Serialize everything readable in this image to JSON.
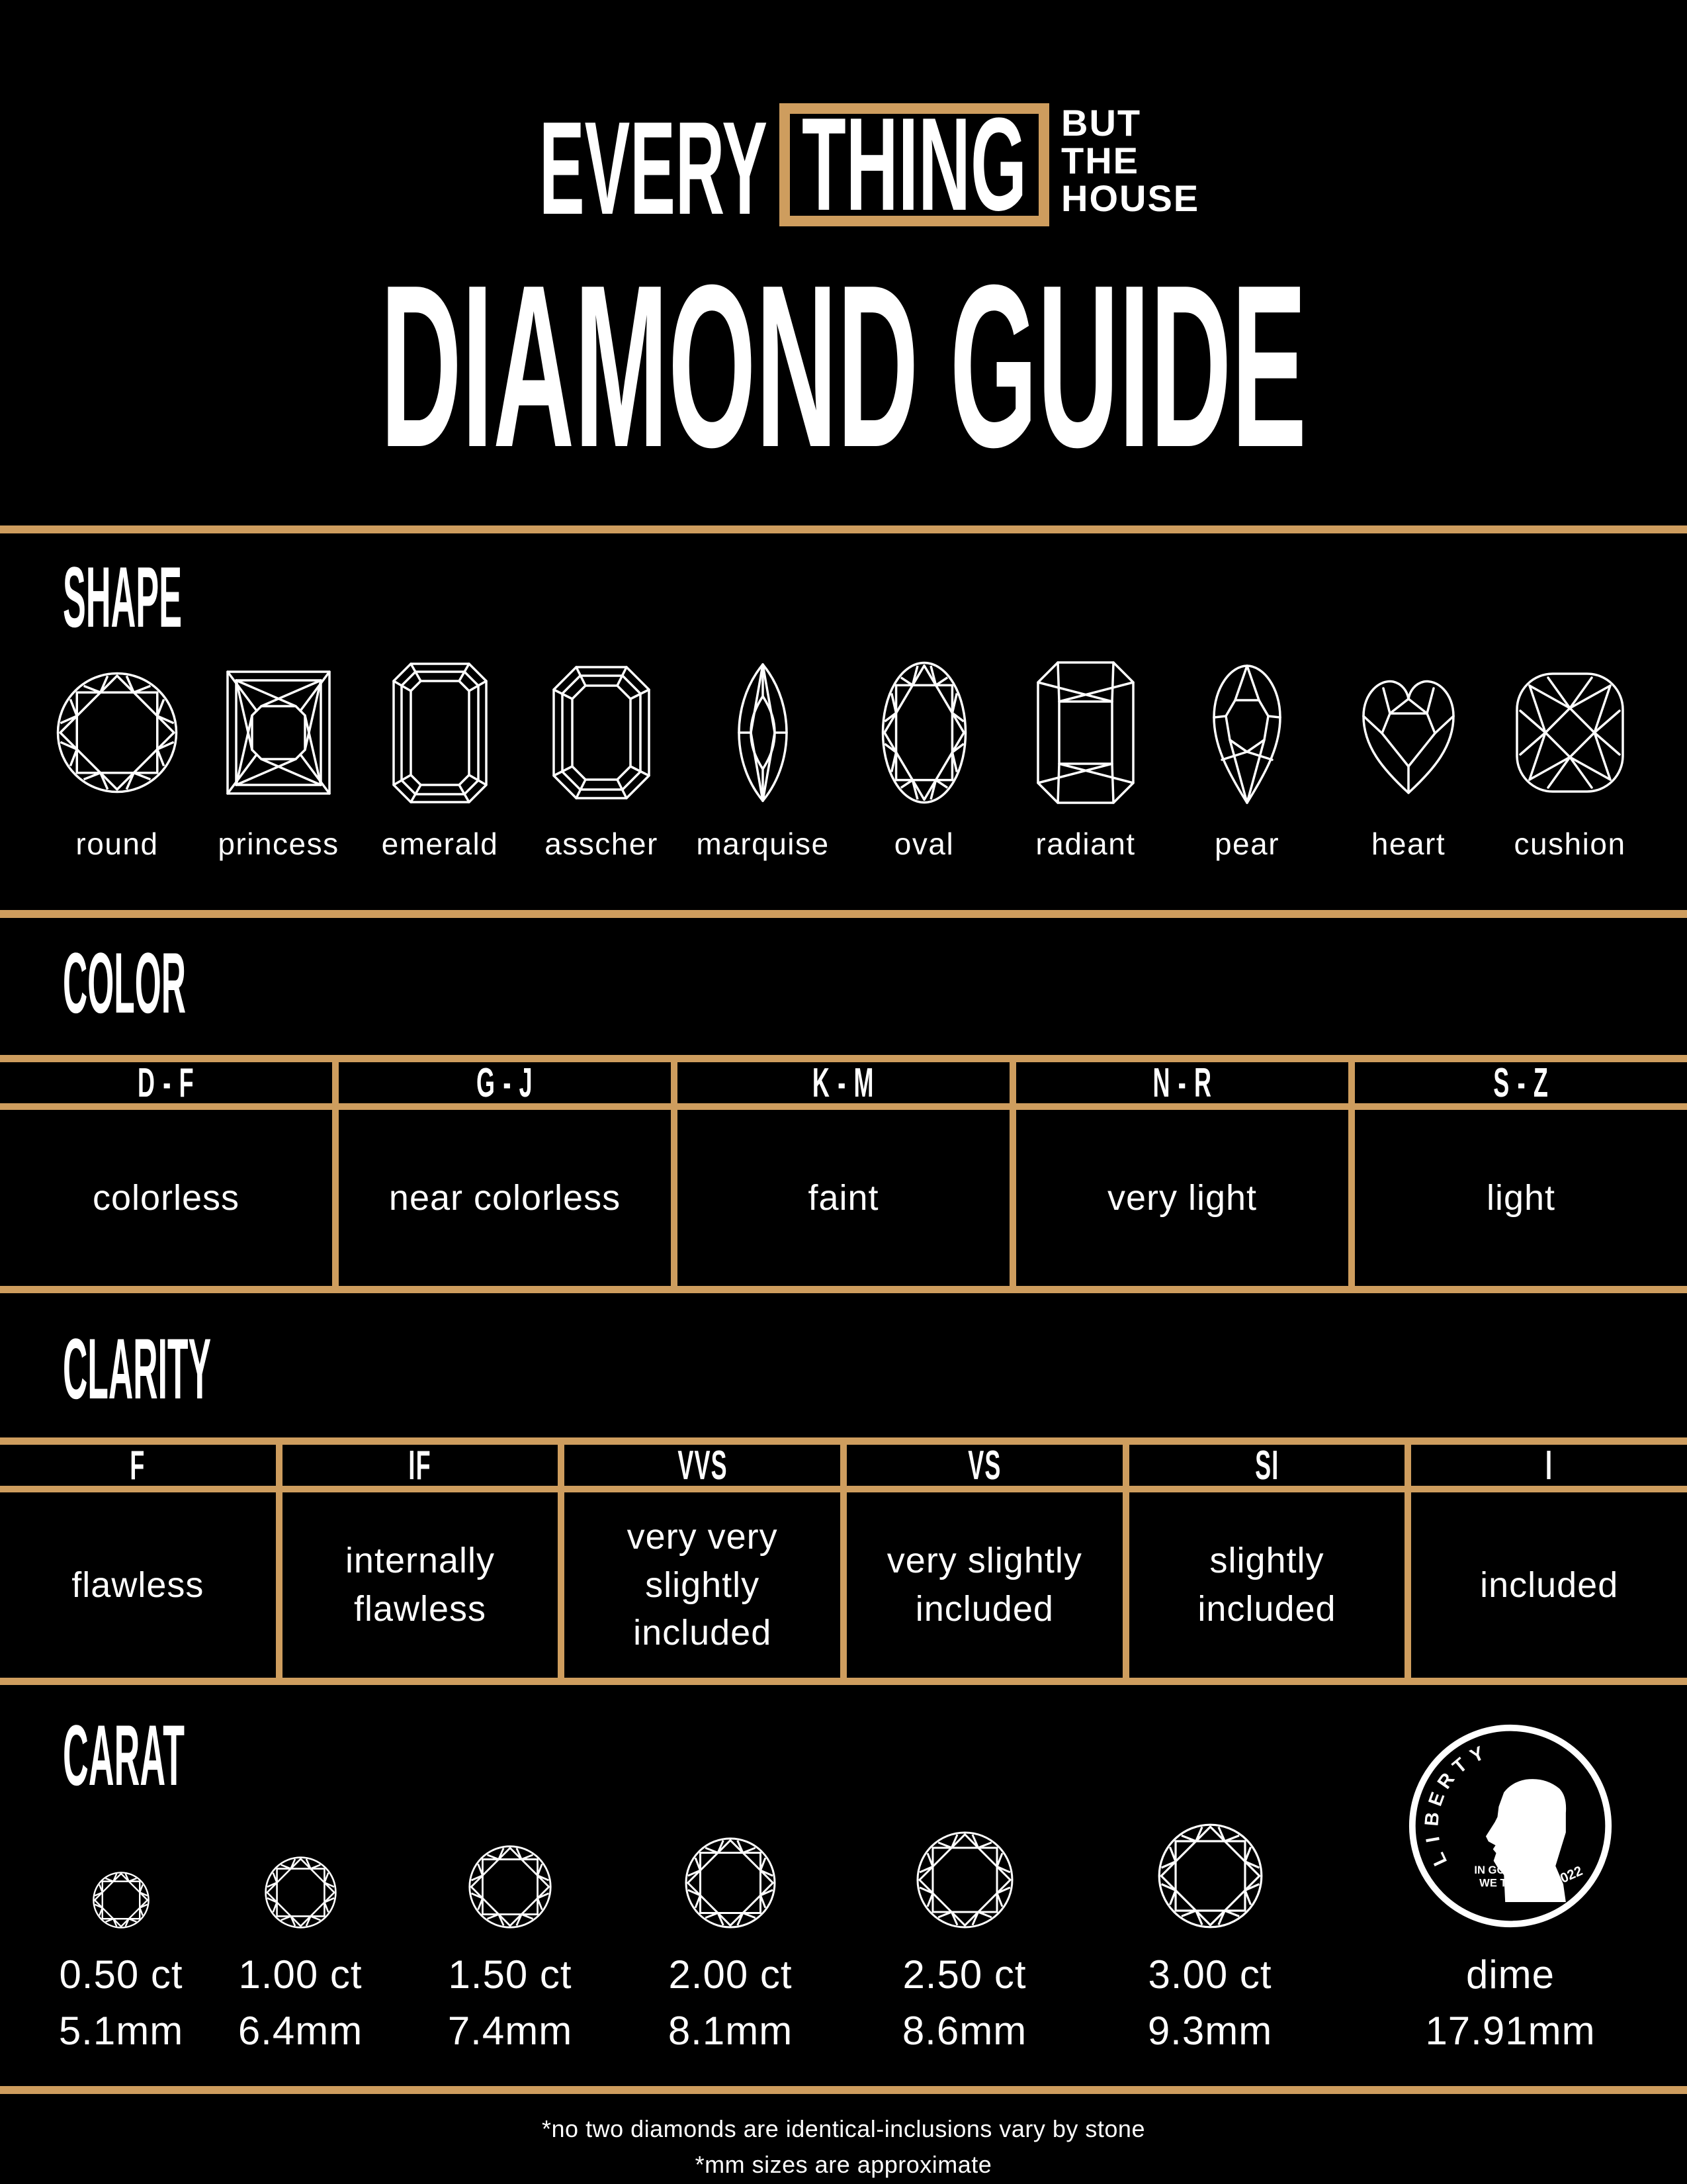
{
  "logo": {
    "line1": "EVERY",
    "boxed": "THING",
    "tagline": [
      "BUT",
      "THE",
      "HOUSE"
    ]
  },
  "title": "DIAMOND GUIDE",
  "shape": {
    "heading": "SHAPE",
    "labels": [
      "round",
      "princess",
      "emerald",
      "asscher",
      "marquise",
      "oval",
      "radiant",
      "pear",
      "heart",
      "cushion"
    ]
  },
  "color": {
    "heading": "COLOR",
    "columns": [
      {
        "grade": "D - F",
        "desc": "colorless"
      },
      {
        "grade": "G - J",
        "desc": "near colorless"
      },
      {
        "grade": "K - M",
        "desc": "faint"
      },
      {
        "grade": "N - R",
        "desc": "very light"
      },
      {
        "grade": "S - Z",
        "desc": "light"
      }
    ]
  },
  "clarity": {
    "heading": "CLARITY",
    "columns": [
      {
        "grade": "F",
        "desc": "flawless"
      },
      {
        "grade": "IF",
        "desc": "internally flawless"
      },
      {
        "grade": "VVS",
        "desc": "very very slightly included"
      },
      {
        "grade": "VS",
        "desc": "very slightly included"
      },
      {
        "grade": "SI",
        "desc": "slightly included"
      },
      {
        "grade": "I",
        "desc": "included"
      }
    ]
  },
  "carat": {
    "heading": "CARAT",
    "items": [
      {
        "ct": "0.50 ct",
        "mm": "5.1mm"
      },
      {
        "ct": "1.00 ct",
        "mm": "6.4mm"
      },
      {
        "ct": "1.50 ct",
        "mm": "7.4mm"
      },
      {
        "ct": "2.00 ct",
        "mm": "8.1mm"
      },
      {
        "ct": "2.50 ct",
        "mm": "8.6mm"
      },
      {
        "ct": "3.00 ct",
        "mm": "9.3mm"
      }
    ],
    "dime": {
      "label": "dime",
      "mm": "17.91mm",
      "liberty_letters": [
        "L",
        "I",
        "B",
        "E",
        "R",
        "T",
        "Y"
      ],
      "motto_line1": "IN GOD",
      "motto_line2": "WE TRUST",
      "year": "2022"
    }
  },
  "footnotes": [
    "*no two diamonds are identical-inclusions vary by stone",
    "*mm sizes are approximate"
  ],
  "colors": {
    "background": "#000000",
    "gold": "#CE9D5E",
    "text": "#FFFFFF"
  }
}
